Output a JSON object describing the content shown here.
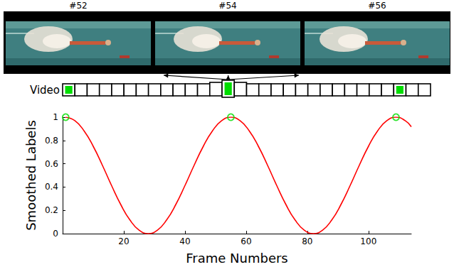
{
  "chart_data": {
    "type": "line",
    "xlabel": "Frame Numbers",
    "ylabel": "Smoothed Labels",
    "annotations": [
      "#52",
      "#54",
      "#56",
      "Video"
    ],
    "xlim": [
      0,
      114
    ],
    "xticks": [
      20,
      40,
      60,
      80,
      100
    ],
    "ylim": [
      0,
      1
    ],
    "yticks": [
      0,
      0.2,
      0.4,
      0.6,
      0.8,
      1
    ],
    "grid": false,
    "series": [
      {
        "type": "line",
        "color": "#ff0000",
        "marker": "none",
        "line_style": "solid",
        "x": [
          1,
          4,
          7,
          10,
          13,
          16,
          19,
          22,
          25,
          28,
          31,
          34,
          37,
          40,
          43,
          46,
          49,
          52,
          55,
          58,
          61,
          64,
          67,
          70,
          73,
          76,
          79,
          82,
          85,
          88,
          91,
          94,
          97,
          100,
          103,
          106,
          109,
          112,
          114
        ],
        "values": [
          1,
          0.97,
          0.883,
          0.75,
          0.587,
          0.413,
          0.25,
          0.117,
          0.03,
          0,
          0.03,
          0.117,
          0.25,
          0.413,
          0.587,
          0.75,
          0.883,
          0.97,
          1,
          0.97,
          0.883,
          0.75,
          0.587,
          0.413,
          0.25,
          0.117,
          0.03,
          0,
          0.03,
          0.117,
          0.25,
          0.413,
          0.587,
          0.75,
          0.883,
          0.97,
          1,
          0.97,
          0.918
        ]
      },
      {
        "type": "scatter",
        "color": "#00dd00",
        "marker": "circle",
        "x": [
          1,
          55,
          109
        ],
        "values": [
          1,
          1,
          1
        ]
      }
    ]
  }
}
